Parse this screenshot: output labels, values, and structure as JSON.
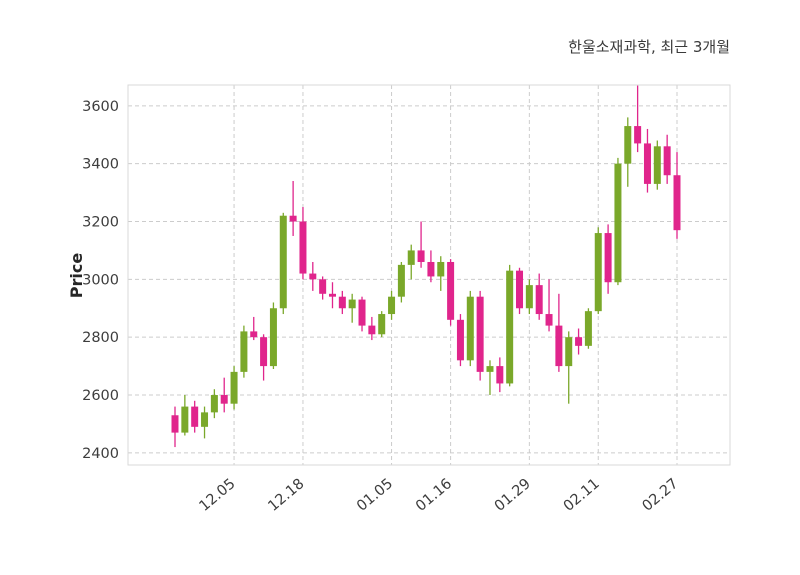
{
  "header": {
    "title": "한울소재과학, 최근 3개월"
  },
  "chart_data": {
    "type": "candlestick",
    "title": "한울소재과학, 최근 3개월",
    "ylabel": "Price",
    "xlabel": "",
    "ylim": [
      2358,
      3672
    ],
    "grid": true,
    "legend": "none",
    "colors": {
      "up": "#7aa82a",
      "down": "#e0258c",
      "grid": "#cccccc",
      "border": "#d9d9d9",
      "text": "#3d3d3d",
      "background": "#ffffff"
    },
    "y_ticks": [
      2400,
      2600,
      2800,
      3000,
      3200,
      3400,
      3600
    ],
    "x_ticks": [
      {
        "label": "12.05",
        "index": 6
      },
      {
        "label": "12.18",
        "index": 13
      },
      {
        "label": "01.05",
        "index": 22
      },
      {
        "label": "01.16",
        "index": 28
      },
      {
        "label": "01.29",
        "index": 36
      },
      {
        "label": "02.11",
        "index": 43
      },
      {
        "label": "02.27",
        "index": 51
      }
    ],
    "candles_format": [
      "open",
      "high",
      "low",
      "close"
    ],
    "candles": [
      [
        2530,
        2560,
        2420,
        2470
      ],
      [
        2470,
        2600,
        2460,
        2560
      ],
      [
        2560,
        2580,
        2470,
        2490
      ],
      [
        2490,
        2560,
        2450,
        2540
      ],
      [
        2540,
        2620,
        2520,
        2600
      ],
      [
        2600,
        2660,
        2540,
        2570
      ],
      [
        2570,
        2700,
        2550,
        2680
      ],
      [
        2680,
        2840,
        2660,
        2820
      ],
      [
        2820,
        2870,
        2790,
        2800
      ],
      [
        2800,
        2810,
        2650,
        2700
      ],
      [
        2700,
        2920,
        2690,
        2900
      ],
      [
        2900,
        3230,
        2880,
        3220
      ],
      [
        3220,
        3340,
        3150,
        3200
      ],
      [
        3200,
        3250,
        3000,
        3020
      ],
      [
        3020,
        3060,
        2960,
        3000
      ],
      [
        3000,
        3010,
        2930,
        2950
      ],
      [
        2950,
        2990,
        2900,
        2940
      ],
      [
        2940,
        2960,
        2880,
        2900
      ],
      [
        2900,
        2950,
        2850,
        2930
      ],
      [
        2930,
        2940,
        2820,
        2840
      ],
      [
        2840,
        2870,
        2790,
        2810
      ],
      [
        2810,
        2890,
        2800,
        2880
      ],
      [
        2880,
        2960,
        2860,
        2940
      ],
      [
        2940,
        3060,
        2920,
        3050
      ],
      [
        3050,
        3120,
        3000,
        3100
      ],
      [
        3100,
        3200,
        3040,
        3060
      ],
      [
        3060,
        3100,
        2990,
        3010
      ],
      [
        3010,
        3080,
        2960,
        3060
      ],
      [
        3060,
        3070,
        2840,
        2860
      ],
      [
        2860,
        2880,
        2700,
        2720
      ],
      [
        2720,
        2960,
        2700,
        2940
      ],
      [
        2940,
        2960,
        2650,
        2680
      ],
      [
        2680,
        2720,
        2600,
        2700
      ],
      [
        2700,
        2730,
        2610,
        2640
      ],
      [
        2640,
        3050,
        2630,
        3030
      ],
      [
        3030,
        3040,
        2880,
        2900
      ],
      [
        2900,
        3000,
        2880,
        2980
      ],
      [
        2980,
        3020,
        2860,
        2880
      ],
      [
        2880,
        3000,
        2820,
        2840
      ],
      [
        2840,
        2950,
        2680,
        2700
      ],
      [
        2700,
        2820,
        2570,
        2800
      ],
      [
        2800,
        2830,
        2740,
        2770
      ],
      [
        2770,
        2900,
        2760,
        2890
      ],
      [
        2890,
        3180,
        2880,
        3160
      ],
      [
        3160,
        3190,
        2950,
        2990
      ],
      [
        2990,
        3420,
        2980,
        3400
      ],
      [
        3400,
        3560,
        3320,
        3530
      ],
      [
        3530,
        3670,
        3440,
        3470
      ],
      [
        3470,
        3520,
        3300,
        3330
      ],
      [
        3330,
        3480,
        3310,
        3460
      ],
      [
        3460,
        3500,
        3330,
        3360
      ],
      [
        3360,
        3440,
        3140,
        3170
      ]
    ]
  }
}
